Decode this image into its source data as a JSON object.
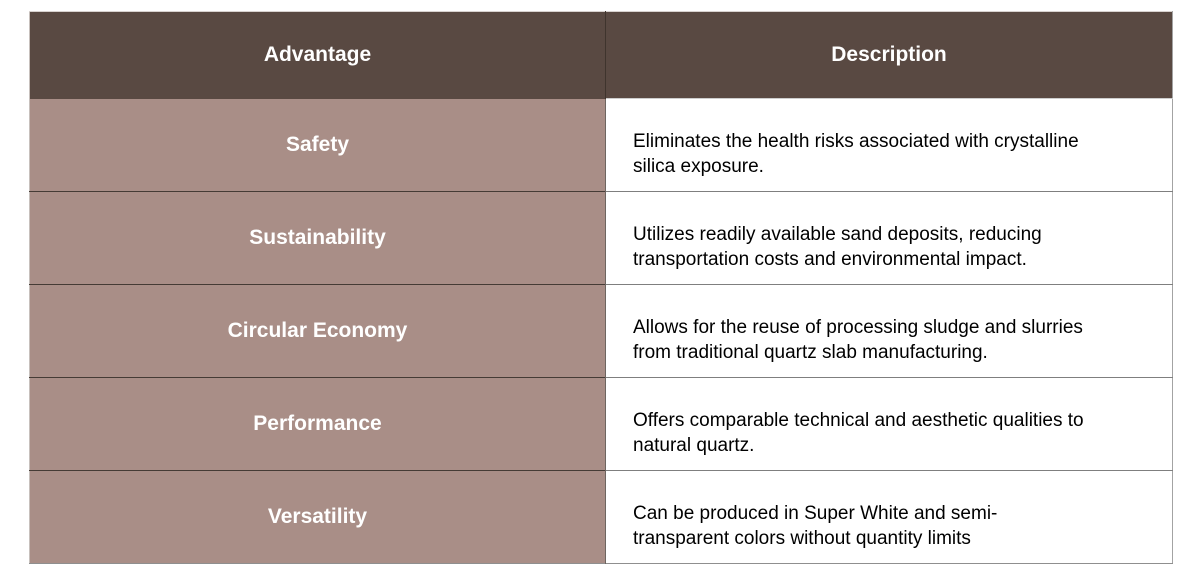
{
  "table": {
    "columns": [
      {
        "label": "Advantage"
      },
      {
        "label": "Description"
      }
    ],
    "rows": [
      {
        "advantage": "Safety",
        "description": "Eliminates the health risks associated with crystalline silica exposure."
      },
      {
        "advantage": "Sustainability",
        "description": "Utilizes readily available sand deposits, reducing transportation costs and environmental impact."
      },
      {
        "advantage": "Circular Economy",
        "description": "Allows for the reuse of processing sludge and slurries from traditional quartz slab manufacturing."
      },
      {
        "advantage": "Performance",
        "description": "Offers comparable technical and aesthetic qualities to natural quartz."
      },
      {
        "advantage": "Versatility",
        "description": "Can be produced in Super White and semi-transparent colors without quantity limits"
      }
    ]
  },
  "theme": {
    "header_bg": "#594942",
    "header_text": "#ffffff",
    "advantage_bg": "#a98e87",
    "advantage_text": "#ffffff",
    "description_bg": "#ffffff",
    "description_text": "#000000"
  }
}
